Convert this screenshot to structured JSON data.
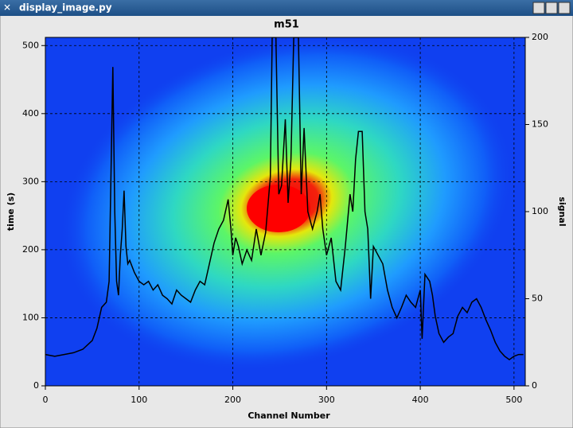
{
  "window": {
    "title": "display_image.py"
  },
  "chart_data": {
    "type": "line",
    "title": "m51",
    "xlabel": "Channel Number",
    "ylabel": "time (s)",
    "y2label": "signal",
    "xlim": [
      0,
      512
    ],
    "xticks": [
      0,
      100,
      200,
      300,
      400,
      500
    ],
    "ylim": [
      0,
      512
    ],
    "yticks": [
      0,
      100,
      200,
      300,
      400,
      500
    ],
    "y2lim": [
      0,
      200
    ],
    "y2ticks": [
      0,
      50,
      100,
      150,
      200
    ],
    "grid": true,
    "x": [
      0,
      10,
      20,
      30,
      40,
      50,
      55,
      60,
      65,
      68,
      70,
      72,
      74,
      76,
      78,
      80,
      82,
      84,
      86,
      88,
      90,
      95,
      100,
      105,
      110,
      115,
      120,
      125,
      130,
      135,
      140,
      145,
      150,
      155,
      160,
      165,
      170,
      175,
      180,
      185,
      190,
      195,
      198,
      200,
      203,
      206,
      210,
      215,
      220,
      225,
      230,
      235,
      240,
      242,
      246,
      249,
      252,
      256,
      259,
      262,
      265,
      270,
      273,
      276,
      280,
      285,
      290,
      293,
      296,
      300,
      305,
      310,
      315,
      320,
      325,
      328,
      331,
      334,
      338,
      341,
      344,
      347,
      350,
      355,
      360,
      365,
      370,
      375,
      380,
      385,
      390,
      395,
      400,
      402,
      405,
      410,
      413,
      416,
      420,
      425,
      430,
      435,
      440,
      445,
      450,
      455,
      460,
      465,
      470,
      475,
      480,
      485,
      490,
      495,
      500,
      505,
      510
    ],
    "series": [
      {
        "color": "#000000",
        "axis": "y2",
        "values": [
          18,
          17,
          18,
          19,
          21,
          26,
          33,
          45,
          48,
          60,
          120,
          183,
          100,
          60,
          52,
          75,
          90,
          112,
          80,
          70,
          72,
          65,
          60,
          58,
          60,
          55,
          58,
          52,
          50,
          47,
          55,
          52,
          50,
          48,
          55,
          60,
          58,
          70,
          82,
          90,
          95,
          107,
          90,
          75,
          85,
          80,
          70,
          78,
          72,
          90,
          75,
          88,
          120,
          200,
          200,
          110,
          115,
          153,
          105,
          130,
          200,
          200,
          110,
          148,
          100,
          90,
          100,
          110,
          90,
          75,
          85,
          60,
          55,
          80,
          110,
          100,
          130,
          146,
          146,
          100,
          90,
          50,
          80,
          75,
          70,
          55,
          45,
          39,
          45,
          52,
          48,
          45,
          55,
          27,
          64,
          60,
          52,
          40,
          30,
          25,
          28,
          30,
          40,
          45,
          42,
          48,
          50,
          45,
          38,
          32,
          25,
          20,
          17,
          15,
          17,
          18,
          18
        ]
      }
    ]
  }
}
